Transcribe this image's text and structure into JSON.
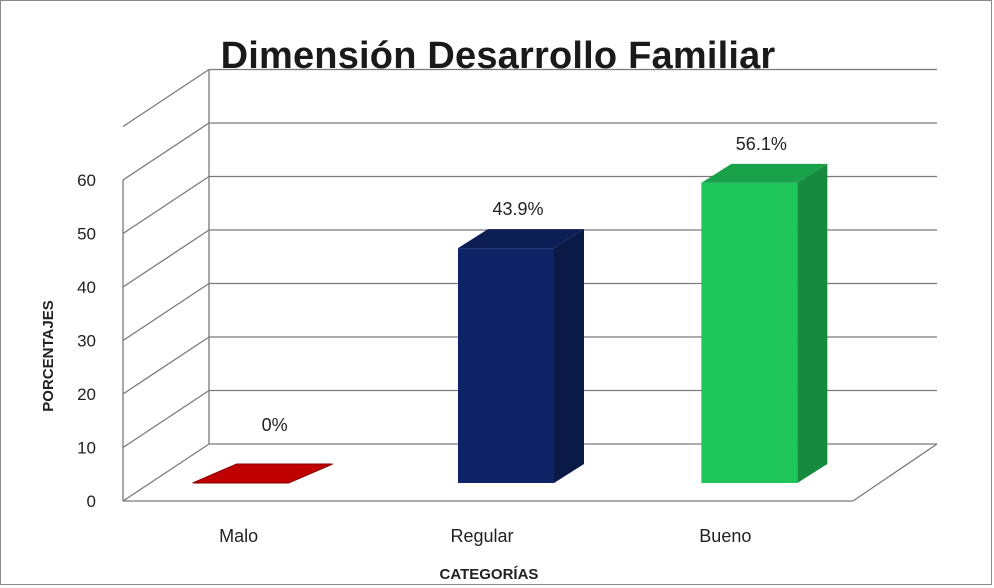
{
  "chart_data": {
    "type": "bar",
    "title": "Dimensión Desarrollo Familiar",
    "xlabel": "CATEGORÍAS",
    "ylabel": "PORCENTAJES",
    "categories": [
      "Malo",
      "Regular",
      "Bueno"
    ],
    "values": [
      0,
      43.9,
      56.1
    ],
    "data_labels": [
      "0%",
      "43.9%",
      "56.1%"
    ],
    "ylim": [
      0,
      60
    ],
    "yticks": [
      "0",
      "10",
      "20",
      "30",
      "40",
      "50",
      "60"
    ],
    "grid": true,
    "three_d": true,
    "legend": "none",
    "colors": {
      "Malo": "#c00000",
      "Regular": "#0f2466",
      "Bueno": "#1fc65a"
    }
  }
}
